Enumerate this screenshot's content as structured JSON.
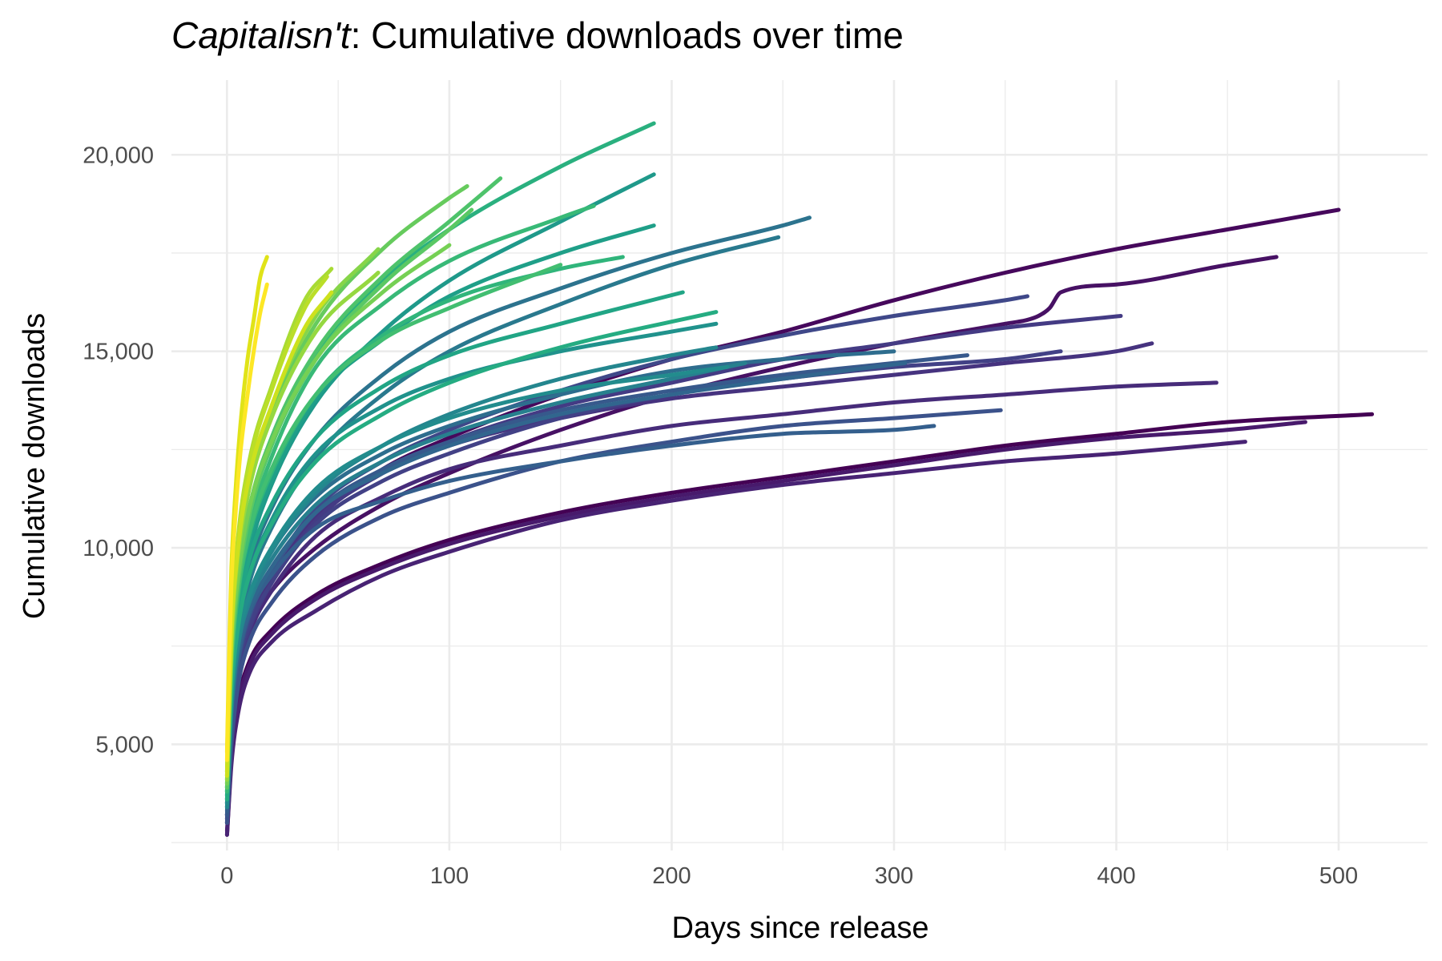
{
  "chart_data": {
    "type": "line",
    "title_italic": "Capitalisn't",
    "title_rest": ": Cumulative downloads over time",
    "xlabel": "Days since release",
    "ylabel": "Cumulative downloads",
    "xlim": [
      -25,
      540
    ],
    "ylim": [
      2300,
      21900
    ],
    "x_ticks": [
      0,
      100,
      200,
      300,
      400,
      500
    ],
    "x_tick_labels": [
      "0",
      "100",
      "200",
      "300",
      "400",
      "500"
    ],
    "y_ticks": [
      5000,
      10000,
      15000,
      20000
    ],
    "y_tick_labels": [
      "5,000",
      "10,000",
      "15,000",
      "20,000"
    ],
    "grid": true,
    "legend": "none",
    "color_scale": "viridis (dark purple = oldest episode, yellow = newest)",
    "series": [
      {
        "x": [
          0,
          2,
          5,
          10,
          20,
          40,
          70,
          100,
          150,
          200,
          250,
          300,
          350,
          400,
          450,
          515
        ],
        "values": [
          2700,
          4700,
          6100,
          7100,
          7900,
          8800,
          9600,
          10200,
          10900,
          11400,
          11800,
          12200,
          12600,
          12900,
          13200,
          13400
        ],
        "color": "#440154"
      },
      {
        "x": [
          0,
          2,
          5,
          10,
          20,
          40,
          70,
          100,
          150,
          200,
          250,
          300,
          350,
          400,
          450,
          500
        ],
        "values": [
          3000,
          5500,
          7000,
          8200,
          9300,
          10700,
          12000,
          12800,
          13900,
          14800,
          15500,
          16300,
          17000,
          17600,
          18100,
          18600
        ],
        "color": "#46085c"
      },
      {
        "x": [
          0,
          2,
          5,
          10,
          20,
          40,
          70,
          100,
          150,
          200,
          250,
          300,
          350,
          360,
          365,
          370,
          375,
          400,
          450,
          472
        ],
        "values": [
          3200,
          5500,
          7000,
          8000,
          8900,
          10000,
          11100,
          11900,
          13000,
          13900,
          14600,
          15200,
          15700,
          15800,
          15900,
          16100,
          16500,
          16700,
          17200,
          17400
        ],
        "color": "#471164"
      },
      {
        "x": [
          0,
          2,
          5,
          10,
          20,
          40,
          70,
          100,
          150,
          200,
          250,
          300,
          350,
          400,
          450,
          485
        ],
        "values": [
          2800,
          4600,
          6000,
          7000,
          7800,
          8700,
          9500,
          10100,
          10800,
          11300,
          11700,
          12100,
          12500,
          12800,
          13000,
          13200
        ],
        "color": "#481a6c"
      },
      {
        "x": [
          0,
          2,
          5,
          10,
          20,
          40,
          70,
          100,
          150,
          200,
          250,
          300,
          350,
          400,
          458
        ],
        "values": [
          2700,
          4500,
          5800,
          6800,
          7600,
          8400,
          9300,
          9900,
          10700,
          11200,
          11600,
          11900,
          12200,
          12400,
          12700
        ],
        "color": "#482374"
      },
      {
        "x": [
          0,
          2,
          5,
          10,
          20,
          40,
          70,
          100,
          150,
          200,
          250,
          300,
          350,
          400,
          445
        ],
        "values": [
          3100,
          5200,
          6700,
          7800,
          8900,
          10300,
          11300,
          12000,
          12600,
          13100,
          13400,
          13700,
          13900,
          14100,
          14200
        ],
        "color": "#472c7a"
      },
      {
        "x": [
          0,
          2,
          5,
          10,
          20,
          40,
          70,
          100,
          150,
          200,
          250,
          300,
          350,
          400,
          416
        ],
        "values": [
          3200,
          5400,
          6900,
          8000,
          9200,
          10800,
          11900,
          12600,
          13300,
          13800,
          14100,
          14400,
          14700,
          15000,
          15200
        ],
        "color": "#46337f"
      },
      {
        "x": [
          0,
          2,
          5,
          10,
          20,
          40,
          70,
          100,
          150,
          200,
          250,
          300,
          350,
          402
        ],
        "values": [
          3000,
          5300,
          6800,
          7900,
          9100,
          10700,
          11900,
          12700,
          13600,
          14200,
          14800,
          15200,
          15600,
          15900
        ],
        "color": "#443b84"
      },
      {
        "x": [
          0,
          2,
          5,
          10,
          20,
          40,
          70,
          100,
          150,
          200,
          250,
          300,
          350,
          375
        ],
        "values": [
          3100,
          5400,
          6900,
          8000,
          9100,
          10600,
          11700,
          12400,
          13300,
          13900,
          14300,
          14600,
          14800,
          15000
        ],
        "color": "#424186"
      },
      {
        "x": [
          0,
          2,
          5,
          10,
          20,
          40,
          70,
          100,
          150,
          200,
          250,
          300,
          350,
          360
        ],
        "values": [
          3200,
          5500,
          7000,
          8200,
          9400,
          11000,
          12200,
          13000,
          14000,
          14800,
          15400,
          15900,
          16300,
          16400
        ],
        "color": "#3f4889"
      },
      {
        "x": [
          0,
          2,
          5,
          10,
          20,
          40,
          70,
          100,
          150,
          200,
          250,
          300,
          348
        ],
        "values": [
          3000,
          5000,
          6500,
          7600,
          8600,
          9800,
          10800,
          11400,
          12200,
          12700,
          13100,
          13300,
          13500
        ],
        "color": "#3b528b"
      },
      {
        "x": [
          0,
          2,
          5,
          10,
          20,
          40,
          70,
          100,
          150,
          200,
          250,
          300,
          333
        ],
        "values": [
          3200,
          5600,
          7100,
          8300,
          9400,
          10900,
          12000,
          12700,
          13500,
          14000,
          14400,
          14700,
          14900
        ],
        "color": "#37598c"
      },
      {
        "x": [
          0,
          2,
          5,
          10,
          20,
          40,
          70,
          100,
          150,
          200,
          250,
          300,
          318
        ],
        "values": [
          3300,
          5700,
          7200,
          8300,
          9300,
          10500,
          11200,
          11700,
          12200,
          12600,
          12900,
          13000,
          13100
        ],
        "color": "#345f8d"
      },
      {
        "x": [
          0,
          2,
          5,
          10,
          20,
          40,
          70,
          100,
          150,
          200,
          250,
          305
        ],
        "values": [
          3400,
          5800,
          7300,
          8400,
          9500,
          10900,
          11900,
          12600,
          13400,
          13900,
          14300,
          14700
        ],
        "color": "#31668e"
      },
      {
        "x": [
          0,
          2,
          5,
          10,
          20,
          40,
          70,
          100,
          150,
          200,
          250,
          300
        ],
        "values": [
          3500,
          6000,
          7500,
          8700,
          9900,
          11300,
          12400,
          13100,
          13900,
          14500,
          14800,
          15000
        ],
        "color": "#2e6d8e"
      },
      {
        "x": [
          0,
          2,
          5,
          10,
          20,
          40,
          70,
          100,
          150,
          200,
          250,
          262
        ],
        "values": [
          3600,
          6400,
          8100,
          9500,
          11000,
          12800,
          14400,
          15500,
          16600,
          17500,
          18200,
          18400
        ],
        "color": "#2c738e"
      },
      {
        "x": [
          0,
          2,
          5,
          10,
          20,
          40,
          70,
          100,
          150,
          200,
          248
        ],
        "values": [
          3500,
          6100,
          7800,
          9100,
          10500,
          12300,
          13900,
          15000,
          16200,
          17200,
          17900
        ],
        "color": "#29798e"
      },
      {
        "x": [
          0,
          2,
          5,
          10,
          20,
          40,
          70,
          100,
          150,
          200,
          233
        ],
        "values": [
          3400,
          5900,
          7500,
          8600,
          9700,
          11100,
          12200,
          12900,
          13700,
          14300,
          14700
        ],
        "color": "#27808e"
      },
      {
        "x": [
          0,
          2,
          5,
          10,
          20,
          40,
          70,
          100,
          150,
          200,
          220
        ],
        "values": [
          3400,
          5900,
          7500,
          8700,
          9900,
          11400,
          12600,
          13400,
          14300,
          14900,
          15100
        ],
        "color": "#24868e"
      },
      {
        "x": [
          0,
          2,
          5,
          10,
          20,
          40,
          70,
          100,
          150,
          200,
          225
        ],
        "values": [
          3500,
          6100,
          7700,
          8800,
          10000,
          11500,
          12600,
          13300,
          14000,
          14400,
          14600
        ],
        "color": "#228c8d"
      },
      {
        "x": [
          0,
          2,
          5,
          10,
          20,
          40,
          70,
          100,
          150,
          200,
          220
        ],
        "values": [
          3600,
          6300,
          8000,
          9300,
          10700,
          12400,
          13600,
          14300,
          15000,
          15500,
          15700
        ],
        "color": "#20928c"
      },
      {
        "x": [
          0,
          2,
          5,
          10,
          20,
          40,
          70,
          100,
          150,
          192
        ],
        "values": [
          3700,
          6600,
          8400,
          9900,
          11600,
          13700,
          15500,
          16800,
          18300,
          19500
        ],
        "color": "#1f998a"
      },
      {
        "x": [
          0,
          2,
          5,
          10,
          20,
          40,
          70,
          100,
          150,
          192
        ],
        "values": [
          3800,
          6800,
          8600,
          10100,
          11700,
          13800,
          15300,
          16400,
          17500,
          18200
        ],
        "color": "#1f9f88"
      },
      {
        "x": [
          0,
          2,
          5,
          10,
          20,
          40,
          70,
          100,
          150,
          205
        ],
        "values": [
          3700,
          6500,
          8300,
          9700,
          11100,
          12800,
          14100,
          14900,
          15700,
          16500
        ],
        "color": "#21a585"
      },
      {
        "x": [
          0,
          2,
          5,
          10,
          20,
          40,
          70,
          100,
          150,
          220
        ],
        "values": [
          3600,
          6300,
          8000,
          9300,
          10600,
          12200,
          13400,
          14200,
          15100,
          16000
        ],
        "color": "#25ac82"
      },
      {
        "x": [
          0,
          2,
          5,
          10,
          20,
          40,
          70,
          100,
          150,
          192
        ],
        "values": [
          3900,
          7100,
          9100,
          10800,
          12600,
          14900,
          16800,
          18100,
          19700,
          20800
        ],
        "color": "#2ab07f"
      },
      {
        "x": [
          0,
          2,
          5,
          10,
          20,
          40,
          70,
          100,
          150,
          178
        ],
        "values": [
          3800,
          6900,
          8800,
          10300,
          11900,
          13900,
          15400,
          16300,
          17100,
          17400
        ],
        "color": "#30b57b"
      },
      {
        "x": [
          0,
          2,
          5,
          10,
          20,
          40,
          70,
          100,
          150,
          165
        ],
        "values": [
          3800,
          6900,
          8900,
          10500,
          12300,
          14600,
          16200,
          17300,
          18400,
          18700
        ],
        "color": "#38b977"
      },
      {
        "x": [
          0,
          2,
          5,
          10,
          20,
          40,
          70,
          100,
          150
        ],
        "values": [
          3900,
          7000,
          8900,
          10400,
          12000,
          13900,
          15300,
          16100,
          17200
        ],
        "color": "#42be71"
      },
      {
        "x": [
          0,
          2,
          5,
          10,
          20,
          40,
          70,
          100,
          123
        ],
        "values": [
          4000,
          7300,
          9300,
          11000,
          12800,
          15000,
          16900,
          18300,
          19400
        ],
        "color": "#4ec36b"
      },
      {
        "x": [
          0,
          2,
          5,
          10,
          20,
          40,
          70,
          100,
          110
        ],
        "values": [
          3900,
          7200,
          9100,
          10800,
          12600,
          14800,
          16700,
          18100,
          18600
        ],
        "color": "#5ac864"
      },
      {
        "x": [
          0,
          2,
          5,
          10,
          20,
          40,
          70,
          100,
          108
        ],
        "values": [
          4100,
          7500,
          9700,
          11500,
          13400,
          15700,
          17600,
          18900,
          19200
        ],
        "color": "#66cb5d"
      },
      {
        "x": [
          0,
          2,
          5,
          10,
          20,
          40,
          70,
          100
        ],
        "values": [
          4000,
          7300,
          9300,
          11000,
          12700,
          14800,
          16500,
          17700
        ],
        "color": "#75d054"
      },
      {
        "x": [
          0,
          2,
          5,
          10,
          20,
          40,
          68
        ],
        "values": [
          4200,
          7700,
          9900,
          11700,
          13600,
          15900,
          17600
        ],
        "color": "#86d549"
      },
      {
        "x": [
          0,
          2,
          5,
          10,
          20,
          40,
          68
        ],
        "values": [
          4100,
          7600,
          9800,
          11500,
          13300,
          15500,
          17000
        ],
        "color": "#95d840"
      },
      {
        "x": [
          0,
          2,
          5,
          10,
          20,
          35,
          47
        ],
        "values": [
          4300,
          8000,
          10300,
          12200,
          14100,
          16300,
          17100
        ],
        "color": "#a8db34"
      },
      {
        "x": [
          0,
          2,
          5,
          10,
          20,
          35,
          45
        ],
        "values": [
          4300,
          7900,
          10200,
          12100,
          14000,
          16100,
          16900
        ],
        "color": "#bade28"
      },
      {
        "x": [
          0,
          2,
          5,
          10,
          20,
          35,
          47
        ],
        "values": [
          4200,
          7800,
          10000,
          11800,
          13600,
          15600,
          16500
        ],
        "color": "#cde11d"
      },
      {
        "x": [
          0,
          1,
          2,
          4,
          6,
          9,
          12,
          15,
          18
        ],
        "values": [
          4800,
          7500,
          9500,
          11600,
          13100,
          14700,
          15800,
          16900,
          17400
        ],
        "color": "#e0e318"
      },
      {
        "x": [
          0,
          1,
          2,
          4,
          6,
          9,
          12,
          15,
          18
        ],
        "values": [
          4600,
          7200,
          9100,
          11000,
          12400,
          13800,
          15000,
          16000,
          16700
        ],
        "color": "#fde725"
      }
    ]
  }
}
